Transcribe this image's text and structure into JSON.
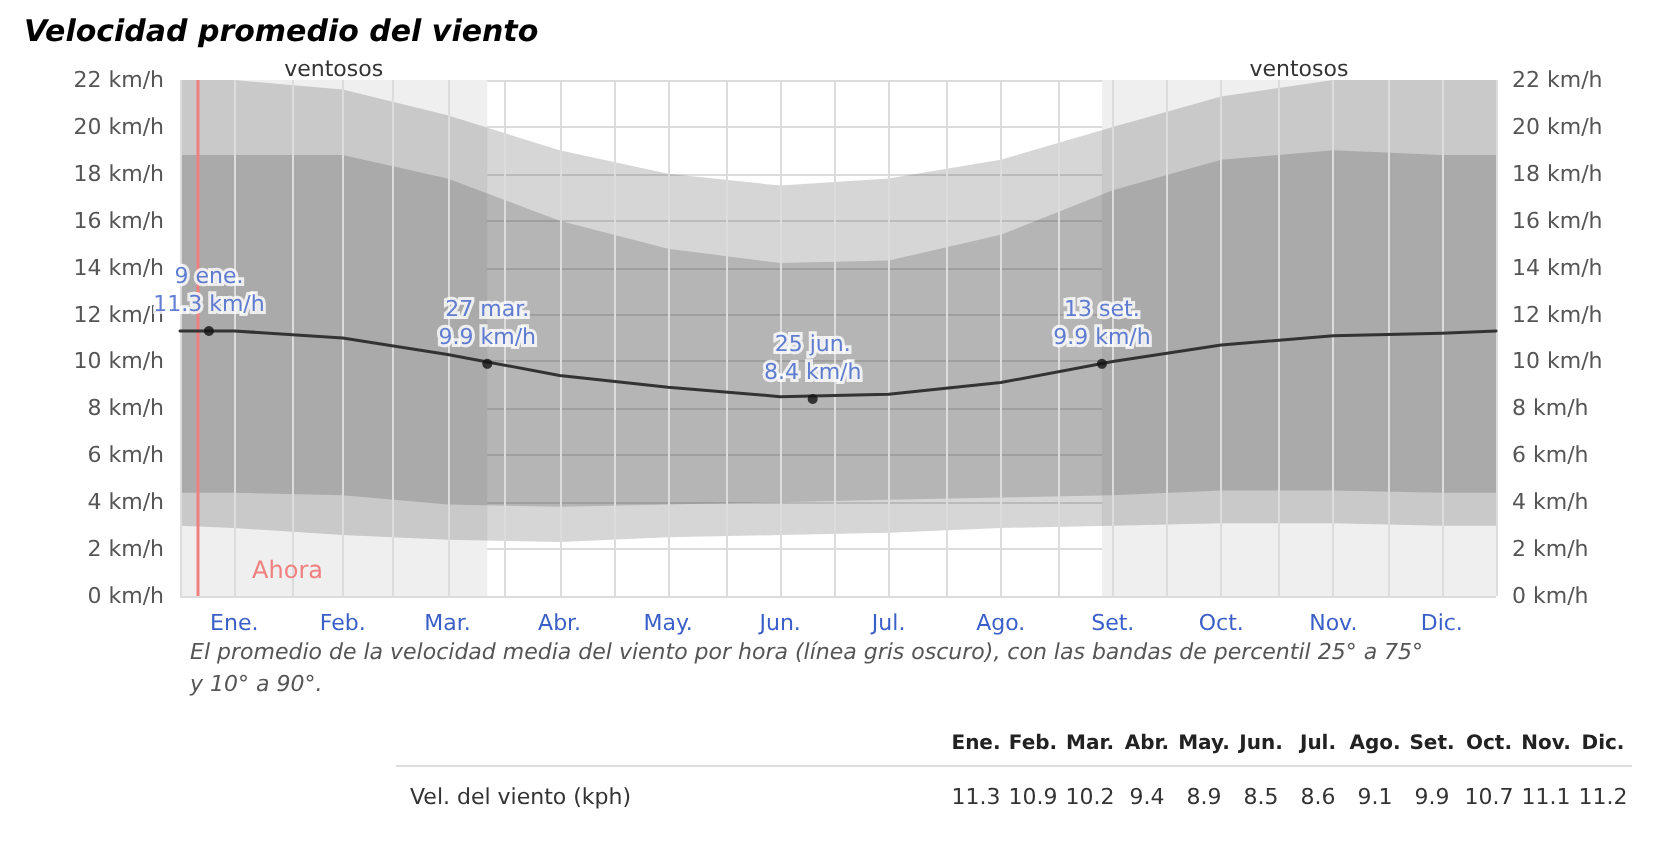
{
  "chart_data": {
    "type": "line",
    "title": "Velocidad promedio del viento",
    "x": [
      "--01-01",
      "--01-16",
      "--02-15",
      "--03-16",
      "--04-16",
      "--05-16",
      "--06-16",
      "--07-16",
      "--08-16",
      "--09-16",
      "--10-16",
      "--11-16",
      "--12-16",
      "--12-31"
    ],
    "series": [
      {
        "color": "#333333",
        "values": [
          11.3,
          11.3,
          11.0,
          10.3,
          9.4,
          8.9,
          8.5,
          8.6,
          9.1,
          10.0,
          10.7,
          11.1,
          11.2,
          11.3
        ],
        "lower": [
          4.4,
          4.4,
          4.3,
          3.9,
          3.8,
          3.9,
          4.0,
          4.1,
          4.2,
          4.3,
          4.5,
          4.5,
          4.4,
          4.4
        ],
        "upper": [
          18.8,
          18.8,
          18.8,
          17.8,
          16.0,
          14.8,
          14.2,
          14.3,
          15.4,
          17.3,
          18.6,
          19.0,
          18.8,
          18.8
        ]
      },
      {
        "color": "#333333",
        "values": [
          null,
          null,
          null,
          null,
          null,
          null,
          null,
          null,
          null,
          null,
          null,
          null,
          null,
          null
        ],
        "lower": [
          3.0,
          2.9,
          2.6,
          2.4,
          2.3,
          2.5,
          2.6,
          2.7,
          2.9,
          3.0,
          3.1,
          3.1,
          3.0,
          3.0
        ],
        "upper": [
          22.0,
          22.0,
          21.6,
          20.5,
          19.0,
          18.0,
          17.5,
          17.8,
          18.6,
          20.0,
          21.3,
          22.0,
          22.0,
          22.0
        ]
      }
    ],
    "xlim": [
      "--01-01",
      "--12-31"
    ],
    "xticks": [
      {
        "value": "--01-01",
        "label": null
      },
      {
        "value": "--01-16",
        "label": "Ene."
      },
      {
        "value": "--02-01",
        "label": null
      },
      {
        "value": "--02-15",
        "label": "Feb."
      },
      {
        "value": "--03-01",
        "label": null
      },
      {
        "value": "--03-16",
        "label": "Mar."
      },
      {
        "value": "--04-01",
        "label": null
      },
      {
        "value": "--04-16",
        "label": "Abr."
      },
      {
        "value": "--05-01",
        "label": null
      },
      {
        "value": "--05-16",
        "label": "May."
      },
      {
        "value": "--06-01",
        "label": null
      },
      {
        "value": "--06-16",
        "label": "Jun."
      },
      {
        "value": "--07-01",
        "label": null
      },
      {
        "value": "--07-16",
        "label": "Jul."
      },
      {
        "value": "--08-01",
        "label": null
      },
      {
        "value": "--08-16",
        "label": "Ago."
      },
      {
        "value": "--09-01",
        "label": null
      },
      {
        "value": "--09-16",
        "label": "Set."
      },
      {
        "value": "--10-01",
        "label": null
      },
      {
        "value": "--10-16",
        "label": "Oct."
      },
      {
        "value": "--11-01",
        "label": null
      },
      {
        "value": "--11-16",
        "label": "Nov."
      },
      {
        "value": "--12-01",
        "label": null
      },
      {
        "value": "--12-16",
        "label": "Dic."
      },
      {
        "value": "--12-31",
        "label": null
      }
    ],
    "ylim": [
      0,
      22
    ],
    "yticks": [
      {
        "value": 0,
        "label": "0 km/h"
      },
      {
        "value": 2,
        "label": "2 km/h"
      },
      {
        "value": 4,
        "label": "4 km/h"
      },
      {
        "value": 6,
        "label": "6 km/h"
      },
      {
        "value": 8,
        "label": "8 km/h"
      },
      {
        "value": 10,
        "label": "10 km/h"
      },
      {
        "value": 12,
        "label": "12 km/h"
      },
      {
        "value": 14,
        "label": "14 km/h"
      },
      {
        "value": 16,
        "label": "16 km/h"
      },
      {
        "value": 18,
        "label": "18 km/h"
      },
      {
        "value": 20,
        "label": "20 km/h"
      },
      {
        "value": 22,
        "label": "22 km/h"
      }
    ],
    "y2lim": [
      0,
      22
    ],
    "y2ticks": [
      {
        "value": 0,
        "label": "0 km/h"
      },
      {
        "value": 2,
        "label": "2 km/h"
      },
      {
        "value": 4,
        "label": "4 km/h"
      },
      {
        "value": 6,
        "label": "6 km/h"
      },
      {
        "value": 8,
        "label": "8 km/h"
      },
      {
        "value": 10,
        "label": "10 km/h"
      },
      {
        "value": 12,
        "label": "12 km/h"
      },
      {
        "value": 14,
        "label": "14 km/h"
      },
      {
        "value": 16,
        "label": "16 km/h"
      },
      {
        "value": 18,
        "label": "18 km/h"
      },
      {
        "value": 20,
        "label": "20 km/h"
      },
      {
        "value": 22,
        "label": "22 km/h"
      }
    ],
    "bands": [
      {
        "axis": "x",
        "from": "--01-01",
        "to": "--03-27",
        "label": "ventosos",
        "color": "#efefef"
      },
      {
        "axis": "x",
        "from": "--09-13",
        "to": "--12-31",
        "label": "ventosos",
        "color": "#efefef"
      }
    ],
    "ref_lines": [
      {
        "axis": "x",
        "value": "--01-06",
        "label": "Ahora",
        "color": "#f08080"
      }
    ],
    "annotations": [
      {
        "text": "9 ene.\n11.3 km/h",
        "x": "--01-09",
        "y": 11.3
      },
      {
        "text": "27 mar.\n9.9 km/h",
        "x": "--03-27",
        "y": 9.9
      },
      {
        "text": "25 jun.\n8.4 km/h",
        "x": "--06-25",
        "y": 8.4
      },
      {
        "text": "13 set.\n9.9 km/h",
        "x": "--09-13",
        "y": 9.9
      },
      "El promedio de la velocidad media del viento por hora (línea gris oscuro), con las bandas de percentil 25° a 75° y 10° a 90°.",
      "Vel. del viento (kph)",
      "11.3",
      "10.9",
      "10.2",
      "9.4",
      "8.9",
      "8.5",
      "8.6",
      "9.1",
      "9.9",
      "10.7",
      "11.1",
      "11.2"
    ],
    "grid": true,
    "marker": "none",
    "line_style": "solid"
  }
}
